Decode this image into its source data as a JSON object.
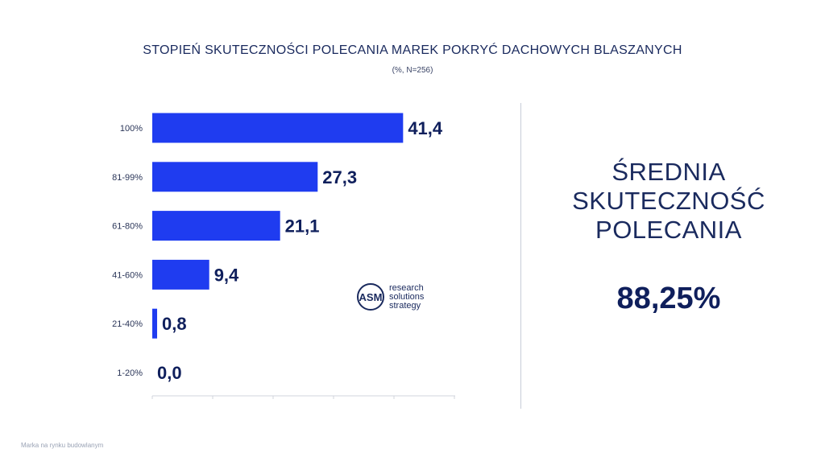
{
  "header": {
    "title": "STOPIEŃ SKUTECZNOŚCI POLECANIA MAREK POKRYĆ DACHOWYCH BLASZANYCH",
    "subtitle": "(%, N=256)"
  },
  "summary": {
    "label_lines": [
      "ŚREDNIA",
      "SKUTECZNOŚĆ",
      "POLECANIA"
    ],
    "value": "88,25%"
  },
  "logo": {
    "mark": "ASM",
    "lines": [
      "research",
      "solutions",
      "strategy"
    ]
  },
  "footer": {
    "text": "Marka na rynku budowlanym"
  },
  "colors": {
    "bar": "#1f3cf0",
    "label": "#0f1f5c",
    "axis": "#d0d4dc"
  },
  "chart_data": {
    "type": "bar",
    "orientation": "horizontal",
    "title": "STOPIEŃ SKUTECZNOŚCI POLECANIA MAREK POKRYĆ DACHOWYCH BLASZANYCH",
    "subtitle": "(%, N=256)",
    "categories": [
      "100%",
      "81-99%",
      "61-80%",
      "41-60%",
      "21-40%",
      "1-20%"
    ],
    "values": [
      41.4,
      27.3,
      21.1,
      9.4,
      0.8,
      0.0
    ],
    "value_labels": [
      "41,4",
      "27,3",
      "21,1",
      "9,4",
      "0,8",
      "0,0"
    ],
    "xlim": [
      0,
      50
    ],
    "grid": false,
    "legend": "none"
  }
}
